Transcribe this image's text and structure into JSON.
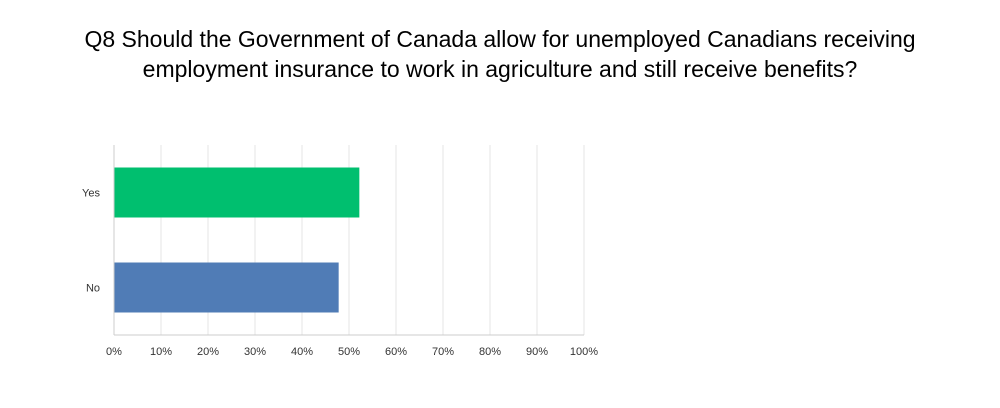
{
  "title": {
    "line1": "Q8 Should the Government of Canada allow for unemployed Canadians receiving",
    "line2": "employment insurance to work in agriculture and still receive benefits?"
  },
  "chart_data": {
    "type": "bar",
    "orientation": "horizontal",
    "categories": [
      "Yes",
      "No"
    ],
    "values": [
      52.2,
      47.8
    ],
    "colors": [
      "#00bf6f",
      "#507cb6"
    ],
    "xlim": [
      0,
      100
    ],
    "xticks": [
      "0%",
      "10%",
      "20%",
      "30%",
      "40%",
      "50%",
      "60%",
      "70%",
      "80%",
      "90%",
      "100%"
    ],
    "grid": true,
    "legend": "none"
  }
}
